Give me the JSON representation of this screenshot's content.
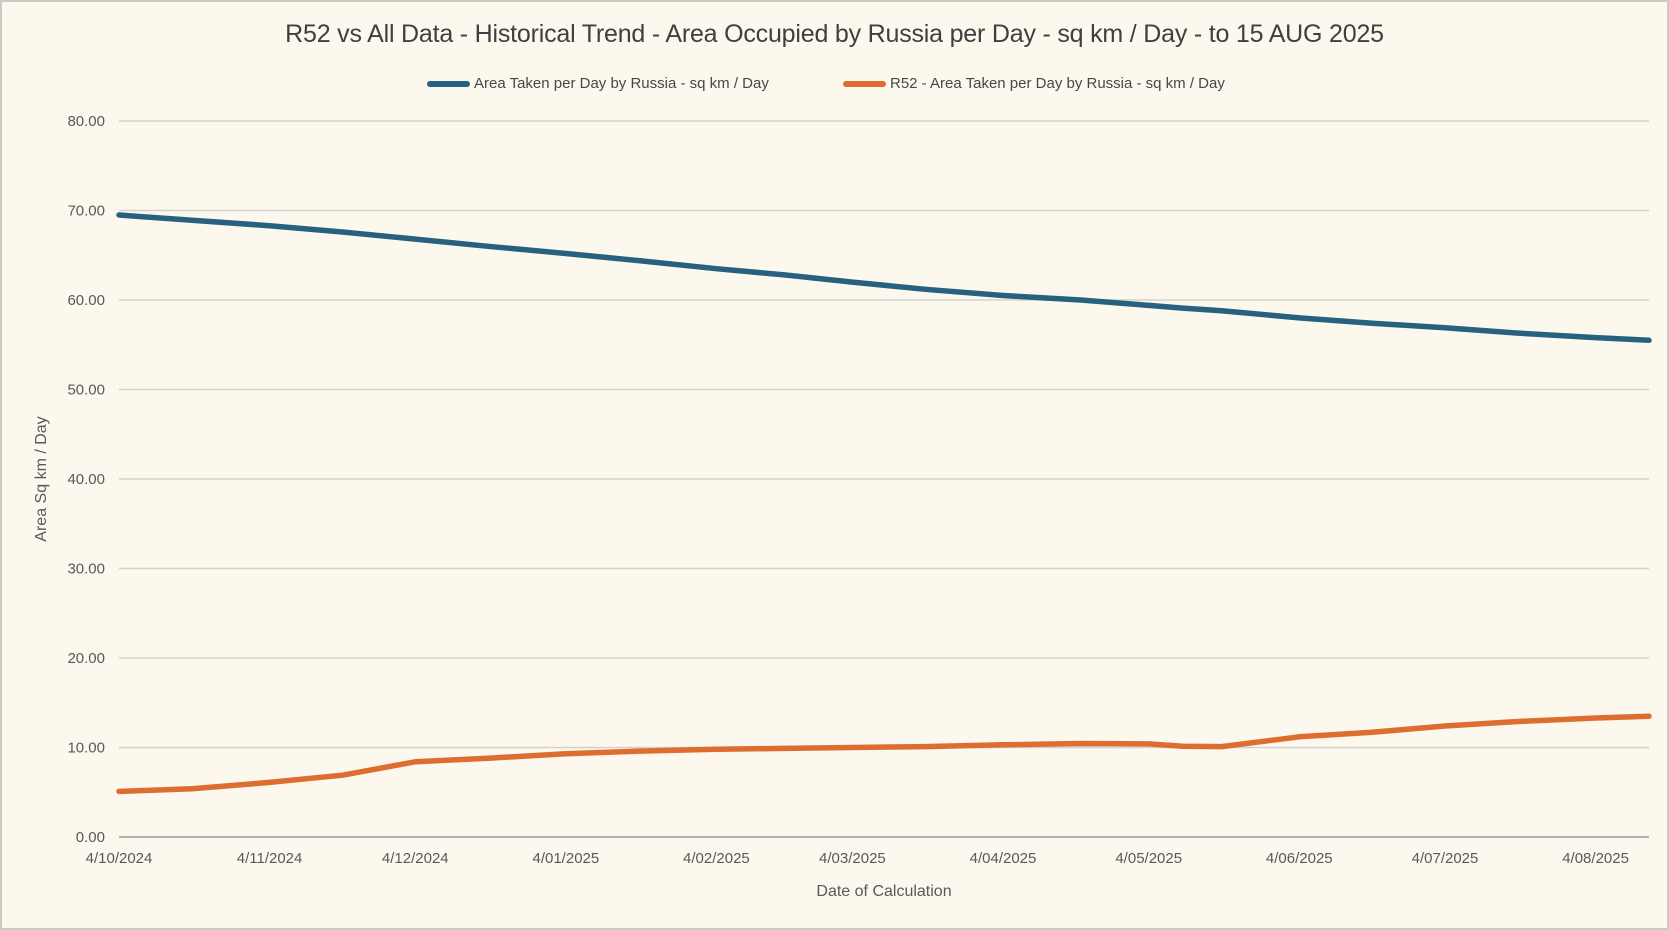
{
  "title": "R52 vs All Data - Historical Trend - Area Occupied by Russia per Day - sq km / Day - to 15 AUG 2025",
  "legend": [
    {
      "label": "Area Taken per Day by Russia - sq km / Day",
      "color": "#26617F"
    },
    {
      "label": "R52 - Area Taken per Day by Russia - sq km / Day",
      "color": "#DE6E2F"
    }
  ],
  "axes": {
    "y_title": "Area Sq km / Day",
    "x_title": "Date of Calculation"
  },
  "colors": {
    "background": "#FDF8EE",
    "gridline": "#D4D2CE",
    "zero_axis": "#B5B3AF",
    "text_muted": "#595959",
    "title_text": "#3F3F3F",
    "series_all_data": "#26617F",
    "series_r52": "#DE6E2F"
  },
  "chart_data": {
    "type": "line",
    "title": "R52 vs All Data - Historical Trend - Area Occupied by Russia per Day - sq km / Day - to 15 AUG 2025",
    "xlabel": "Date of Calculation",
    "ylabel": "Area Sq km / Day",
    "ylim": [
      0,
      80
    ],
    "grid": "horizontal",
    "legend_position": "top",
    "y_ticks": [
      {
        "value": 0,
        "label": "0.00"
      },
      {
        "value": 10,
        "label": "10.00"
      },
      {
        "value": 20,
        "label": "20.00"
      },
      {
        "value": 30,
        "label": "30.00"
      },
      {
        "value": 40,
        "label": "40.00"
      },
      {
        "value": 50,
        "label": "50.00"
      },
      {
        "value": 60,
        "label": "60.00"
      },
      {
        "value": 70,
        "label": "70.00"
      },
      {
        "value": 80,
        "label": "80.00"
      }
    ],
    "x_axis": {
      "unit": "date",
      "start_date": "4/10/2024",
      "end_date": "15 AUG 2025",
      "total_days": 315,
      "ticks": [
        {
          "day": 0,
          "label": "4/10/2024"
        },
        {
          "day": 31,
          "label": "4/11/2024"
        },
        {
          "day": 61,
          "label": "4/12/2024"
        },
        {
          "day": 92,
          "label": "4/01/2025"
        },
        {
          "day": 123,
          "label": "4/02/2025"
        },
        {
          "day": 151,
          "label": "4/03/2025"
        },
        {
          "day": 182,
          "label": "4/04/2025"
        },
        {
          "day": 212,
          "label": "4/05/2025"
        },
        {
          "day": 243,
          "label": "4/06/2025"
        },
        {
          "day": 273,
          "label": "4/07/2025"
        },
        {
          "day": 304,
          "label": "4/08/2025"
        }
      ]
    },
    "x_days": [
      0,
      15,
      31,
      46,
      61,
      76,
      92,
      107,
      123,
      137,
      151,
      166,
      182,
      198,
      212,
      219,
      227,
      243,
      258,
      273,
      288,
      304,
      315
    ],
    "series": [
      {
        "name": "Area Taken per Day by Russia - sq km / Day",
        "color": "#26617F",
        "values": [
          69.5,
          68.9,
          68.3,
          67.6,
          66.8,
          66.0,
          65.2,
          64.4,
          63.5,
          62.8,
          62.0,
          61.2,
          60.5,
          60.0,
          59.4,
          59.1,
          58.8,
          58.0,
          57.4,
          56.9,
          56.3,
          55.8,
          55.5
        ]
      },
      {
        "name": "R52 - Area Taken per Day by Russia - sq km / Day",
        "color": "#DE6E2F",
        "values": [
          5.1,
          5.4,
          6.1,
          6.9,
          8.4,
          8.8,
          9.3,
          9.6,
          9.8,
          9.9,
          10.0,
          10.1,
          10.3,
          10.45,
          10.4,
          10.15,
          10.1,
          11.2,
          11.7,
          12.4,
          12.9,
          13.3,
          13.5
        ]
      }
    ]
  }
}
